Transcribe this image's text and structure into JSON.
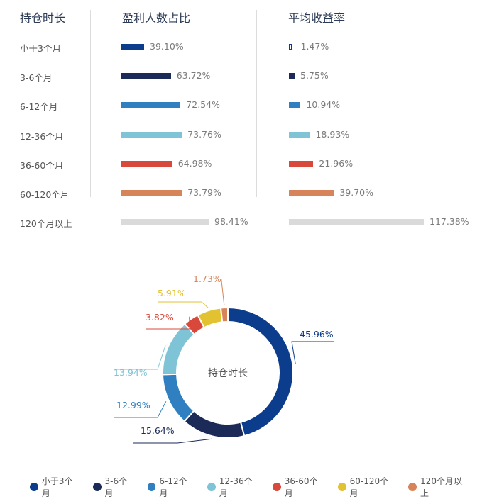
{
  "table": {
    "headers": [
      "持仓时长",
      "盈利人数占比",
      "平均收益率"
    ],
    "rows": [
      {
        "label": "小于3个月",
        "color": "#0c3c8c",
        "profit_pct": 39.1,
        "profit_text": "39.10%",
        "ret_pct": -1.47,
        "ret_text": "-1.47%"
      },
      {
        "label": "3-6个月",
        "color": "#1b2a57",
        "profit_pct": 63.72,
        "profit_text": "63.72%",
        "ret_pct": 5.75,
        "ret_text": "5.75%"
      },
      {
        "label": "6-12个月",
        "color": "#2f7fc1",
        "profit_pct": 72.54,
        "profit_text": "72.54%",
        "ret_pct": 10.94,
        "ret_text": "10.94%"
      },
      {
        "label": "12-36个月",
        "color": "#7fc4d6",
        "profit_pct": 73.76,
        "profit_text": "73.76%",
        "ret_pct": 18.93,
        "ret_text": "18.93%"
      },
      {
        "label": "36-60个月",
        "color": "#d8483b",
        "profit_pct": 64.98,
        "profit_text": "64.98%",
        "ret_pct": 21.96,
        "ret_text": "21.96%"
      },
      {
        "label": "60-120个月",
        "color": "#d8845a",
        "profit_pct": 73.79,
        "profit_text": "73.79%",
        "ret_pct": 39.7,
        "ret_text": "39.70%"
      },
      {
        "label": "120个月以上",
        "color": "#dadada",
        "profit_pct": 98.41,
        "profit_text": "98.41%",
        "ret_pct": 117.38,
        "ret_text": "117.38%"
      }
    ]
  },
  "chart_data": {
    "type": "pie",
    "center_label": "持仓时长",
    "slices": [
      {
        "name": "小于3个月",
        "value": 45.96,
        "label": "45.96%",
        "color": "#0c3c8c"
      },
      {
        "name": "3-6个月",
        "value": 15.64,
        "label": "15.64%",
        "color": "#1b2a57"
      },
      {
        "name": "6-12个月",
        "value": 12.99,
        "label": "12.99%",
        "color": "#2f7fc1"
      },
      {
        "name": "12-36个月",
        "value": 13.94,
        "label": "13.94%",
        "color": "#7fc4d6"
      },
      {
        "name": "36-60个月",
        "value": 3.82,
        "label": "3.82%",
        "color": "#d8483b"
      },
      {
        "name": "60-120个月",
        "value": 5.91,
        "label": "5.91%",
        "color": "#e3c232"
      },
      {
        "name": "120个月以上",
        "value": 1.73,
        "label": "1.73%",
        "color": "#d8845a"
      }
    ],
    "legend_position": "bottom"
  }
}
